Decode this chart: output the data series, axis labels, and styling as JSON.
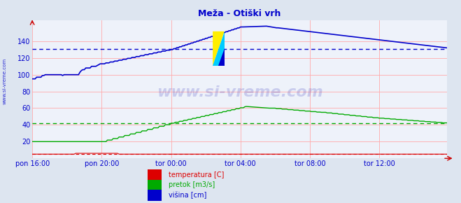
{
  "title": "Meža - Otiški vrh",
  "title_color": "#0000cc",
  "bg_color": "#dde5f0",
  "plot_bg_color": "#eef2fa",
  "grid_color": "#ffaaaa",
  "ylabel_color": "#0000cc",
  "xlabel_color": "#0000cc",
  "yticks": [
    20,
    40,
    60,
    80,
    100,
    120,
    140
  ],
  "ylim": [
    0,
    165
  ],
  "xlim": [
    0,
    287
  ],
  "xtick_labels": [
    "pon 16:00",
    "pon 20:00",
    "tor 00:00",
    "tor 04:00",
    "tor 08:00",
    "tor 12:00"
  ],
  "xtick_positions": [
    0,
    48,
    96,
    144,
    192,
    240
  ],
  "avg_blue": 131,
  "avg_green": 42,
  "avg_red": 5,
  "watermark": "www.si-vreme.com",
  "legend": [
    {
      "label": "temperatura [C]",
      "color": "#dd0000"
    },
    {
      "label": "pretok [m3/s]",
      "color": "#00aa00"
    },
    {
      "label": "višina [cm]",
      "color": "#0000cc"
    }
  ],
  "figsize": [
    6.59,
    2.9
  ],
  "dpi": 100
}
